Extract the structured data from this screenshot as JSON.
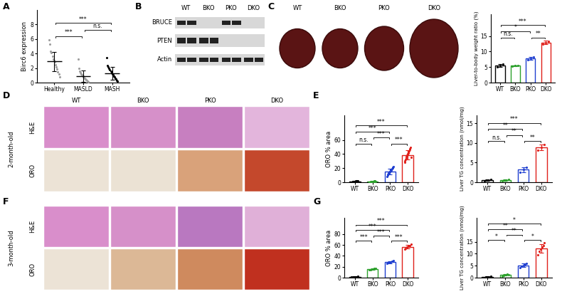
{
  "panel_labels": [
    "A",
    "B",
    "C",
    "D",
    "E",
    "F",
    "G"
  ],
  "blot": {
    "groups": [
      "WT",
      "BKO",
      "PKO",
      "DKO"
    ],
    "rows": [
      {
        "label": "BRUCE",
        "present": [
          true,
          false,
          true,
          false
        ]
      },
      {
        "label": "PTEN",
        "present": [
          true,
          true,
          false,
          false
        ]
      },
      {
        "label": "Actin",
        "present": [
          true,
          true,
          true,
          true
        ]
      }
    ]
  },
  "liver_photos": {
    "labels": [
      "WT",
      "BKO",
      "PKO",
      "DKO"
    ]
  },
  "histology": [
    {
      "age": "2-month-old",
      "rows": [
        "H&E",
        "ORO"
      ],
      "columns": [
        "WT",
        "BKO",
        "PKO",
        "DKO"
      ]
    },
    {
      "age": "3-month-old",
      "rows": [
        "H&E",
        "ORO"
      ]
    }
  ],
  "chart_data": [
    {
      "type": "scatter",
      "ylabel": "Birc6 expression",
      "categories": [
        "Healthy",
        "MASLD",
        "MASH"
      ],
      "values": [
        2.9,
        0.9,
        1.3
      ],
      "errors": [
        1.3,
        0.8,
        0.9
      ],
      "points": [
        [
          5.9,
          5.3,
          4.3,
          4.1,
          3.6,
          3.2,
          3.0,
          2.8,
          2.5,
          2.2,
          1.9,
          1.5,
          1.2,
          0.8
        ],
        [
          3.2,
          2.0,
          1.6,
          1.4,
          1.2,
          1.1,
          1.0,
          0.9,
          0.8,
          0.7,
          0.6,
          0.5,
          0.4,
          0.3,
          0.2,
          0.1
        ],
        [
          3.4,
          2.4,
          2.2,
          2.0,
          1.8,
          1.6,
          1.4,
          1.2,
          1.1,
          0.9,
          0.8,
          0.6,
          0.5,
          0.3,
          0.2
        ]
      ],
      "colors": [
        "#9e9e9e",
        "#9e9e9e",
        "#000000"
      ],
      "marker": "circle",
      "ylim": [
        0,
        10
      ],
      "yticks": [
        0,
        2,
        4,
        6,
        8
      ],
      "comparisons": [
        {
          "pair": [
            "Healthy",
            "MASLD"
          ],
          "label": "***"
        },
        {
          "pair": [
            "MASLD",
            "MASH"
          ],
          "label": "n.s."
        },
        {
          "pair": [
            "Healthy",
            "MASH"
          ],
          "label": "***"
        }
      ]
    },
    {
      "type": "bar",
      "ylabel": "Liver-to-body weight ratio (%)",
      "categories": [
        "WT",
        "BKO",
        "PKO",
        "DKO"
      ],
      "values": [
        5.5,
        5.4,
        7.8,
        12.9
      ],
      "errors": [
        0.5,
        0.2,
        0.5,
        0.55
      ],
      "points": [
        [
          5.0,
          5.5,
          6.0
        ],
        [
          5.2,
          5.4,
          5.6
        ],
        [
          7.3,
          7.8,
          8.3
        ],
        [
          12.3,
          12.9,
          13.4
        ]
      ],
      "colors": [
        "#000000",
        "#2ca02c",
        "#1f3fd0",
        "#e0201b"
      ],
      "marker": "circle",
      "ylim": [
        0,
        22
      ],
      "yticks": [
        0,
        5,
        10,
        15
      ],
      "comparisons": [
        {
          "pair": [
            "WT",
            "BKO"
          ],
          "label": "n.s."
        },
        {
          "pair": [
            "WT",
            "PKO"
          ],
          "label": "*"
        },
        {
          "pair": [
            "PKO",
            "DKO"
          ],
          "label": "**"
        },
        {
          "pair": [
            "WT",
            "DKO"
          ],
          "label": "***"
        }
      ]
    },
    {
      "type": "bar",
      "ylabel": "ORO % area",
      "categories": [
        "WT",
        "BKO",
        "PKO",
        "DKO"
      ],
      "values": [
        1.2,
        1.0,
        15.4,
        38.9
      ],
      "errors": [
        0.6,
        0.5,
        4.2,
        6.5
      ],
      "points": [
        [
          0.3,
          0.5,
          0.7,
          0.8,
          1.0,
          1.1,
          1.2,
          1.3,
          1.5,
          1.6,
          1.8,
          2.0,
          2.2,
          2.5,
          0.6
        ],
        [
          0.2,
          0.4,
          0.5,
          0.6,
          0.8,
          0.9,
          1.0,
          1.1,
          1.2,
          1.4,
          1.5,
          1.7,
          1.9,
          0.3,
          0.7
        ],
        [
          8,
          10,
          11,
          12,
          13,
          14,
          15,
          15,
          16,
          17,
          18,
          19,
          20,
          21,
          22
        ],
        [
          28,
          30,
          32,
          34,
          36,
          38,
          39,
          40,
          41,
          42,
          44,
          46,
          48,
          50,
          35
        ]
      ],
      "colors": [
        "#000000",
        "#2ca02c",
        "#1f3fd0",
        "#e0201b"
      ],
      "marker": "circle",
      "ylim": [
        0,
        95
      ],
      "yticks": [
        0,
        20,
        40,
        60
      ],
      "comparisons": [
        {
          "pair": [
            "WT",
            "BKO"
          ],
          "label": "n.s."
        },
        {
          "pair": [
            "BKO",
            "PKO"
          ],
          "label": "***"
        },
        {
          "pair": [
            "PKO",
            "DKO"
          ],
          "label": "***"
        },
        {
          "pair": [
            "WT",
            "PKO"
          ],
          "label": "***"
        },
        {
          "pair": [
            "WT",
            "DKO"
          ],
          "label": "***"
        }
      ]
    },
    {
      "type": "bar",
      "ylabel": "Liver TG concentration (nmol/mg)",
      "categories": [
        "WT",
        "BKO",
        "PKO",
        "DKO"
      ],
      "values": [
        0.5,
        0.57,
        3.2,
        8.9
      ],
      "errors": [
        0.2,
        0.15,
        0.6,
        0.7
      ],
      "points": [
        [
          0.3,
          0.5,
          0.7
        ],
        [
          0.4,
          0.6,
          0.7
        ],
        [
          2.6,
          3.2,
          3.8
        ],
        [
          8.2,
          8.8,
          9.6
        ]
      ],
      "colors": [
        "#000000",
        "#2ca02c",
        "#1f3fd0",
        "#e0201b"
      ],
      "marker": "circle",
      "ylim": [
        0,
        17
      ],
      "yticks": [
        0,
        5,
        10,
        15
      ],
      "comparisons": [
        {
          "pair": [
            "WT",
            "BKO"
          ],
          "label": "n.s."
        },
        {
          "pair": [
            "BKO",
            "PKO"
          ],
          "label": "**"
        },
        {
          "pair": [
            "PKO",
            "DKO"
          ],
          "label": "**"
        },
        {
          "pair": [
            "WT",
            "PKO"
          ],
          "label": "**"
        },
        {
          "pair": [
            "WT",
            "DKO"
          ],
          "label": "***"
        }
      ]
    },
    {
      "type": "bar",
      "ylabel": "ORO % area",
      "categories": [
        "WT",
        "BKO",
        "PKO",
        "DKO"
      ],
      "values": [
        1.6,
        15.7,
        28.5,
        56.7
      ],
      "errors": [
        0.4,
        1.0,
        1.9,
        3.5
      ],
      "points": [
        [
          1.0,
          1.3,
          1.5,
          1.7,
          1.9,
          2.1
        ],
        [
          14,
          15,
          15.5,
          16,
          16.5,
          17
        ],
        [
          26,
          27,
          28,
          29,
          30,
          31
        ],
        [
          52,
          54,
          56,
          57,
          59,
          62
        ]
      ],
      "colors": [
        "#000000",
        "#2ca02c",
        "#1f3fd0",
        "#e0201b"
      ],
      "marker": "circle",
      "ylim": [
        0,
        110
      ],
      "yticks": [
        0,
        20,
        40,
        60,
        80
      ],
      "comparisons": [
        {
          "pair": [
            "WT",
            "BKO"
          ],
          "label": "***"
        },
        {
          "pair": [
            "BKO",
            "PKO"
          ],
          "label": "***"
        },
        {
          "pair": [
            "PKO",
            "DKO"
          ],
          "label": "***"
        },
        {
          "pair": [
            "WT",
            "PKO"
          ],
          "label": "***"
        },
        {
          "pair": [
            "WT",
            "DKO"
          ],
          "label": "***"
        }
      ]
    },
    {
      "type": "bar",
      "ylabel": "Liver TG concentration (nmol/mg)",
      "categories": [
        "WT",
        "BKO",
        "PKO",
        "DKO"
      ],
      "values": [
        0.3,
        1.1,
        5.2,
        12.2
      ],
      "errors": [
        0.15,
        0.3,
        0.65,
        1.7
      ],
      "points": [
        [
          0.1,
          0.2,
          0.3,
          0.4,
          0.5
        ],
        [
          0.6,
          0.9,
          1.1,
          1.3,
          1.5,
          1.2
        ],
        [
          4.3,
          4.8,
          5.2,
          5.6,
          6.0
        ],
        [
          9.5,
          11,
          12,
          12.8,
          13.5,
          14.5
        ]
      ],
      "colors": [
        "#000000",
        "#2ca02c",
        "#1f3fd0",
        "#e0201b"
      ],
      "marker": "circle",
      "ylim": [
        0,
        25
      ],
      "yticks": [
        0,
        5,
        10,
        15
      ],
      "comparisons": [
        {
          "pair": [
            "WT",
            "BKO"
          ],
          "label": "*"
        },
        {
          "pair": [
            "BKO",
            "PKO"
          ],
          "label": "**"
        },
        {
          "pair": [
            "PKO",
            "DKO"
          ],
          "label": "*"
        },
        {
          "pair": [
            "WT",
            "PKO"
          ],
          "label": "**"
        },
        {
          "pair": [
            "WT",
            "DKO"
          ],
          "label": "*"
        }
      ]
    }
  ]
}
